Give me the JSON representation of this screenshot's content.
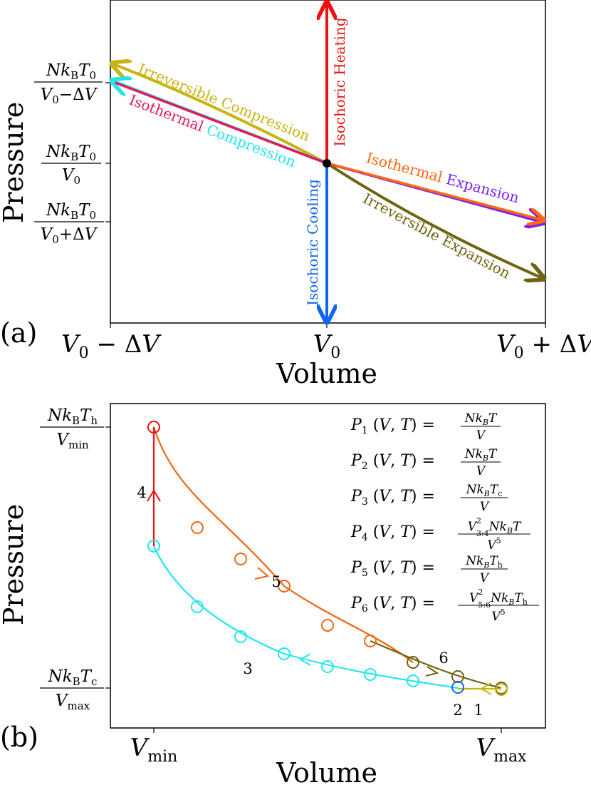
{
  "chart_data": [
    {
      "panel_label": "(a)",
      "type": "line",
      "xlabel": "Volume",
      "ylabel": "Pressure",
      "xticks": [
        {
          "value": -1,
          "label": "V0 − ΔV"
        },
        {
          "value": 0,
          "label": "V0"
        },
        {
          "value": 1,
          "label": "V0 + ΔV"
        }
      ],
      "yticks": [
        {
          "value": 1.333,
          "label": "NkBT0 / (V0−ΔV)"
        },
        {
          "value": 1.0,
          "label": "NkBT0 / V0"
        },
        {
          "value": 0.8,
          "label": "NkBT0 / (V0+ΔV)"
        }
      ],
      "xlim": [
        -1,
        1
      ],
      "ylim": [
        0.25,
        1.75
      ],
      "state_point": {
        "x": 0,
        "y": 1.0
      },
      "series": [
        {
          "name": "Isochoric Heating",
          "color": "#ee1111",
          "points": [
            [
              0,
              1.0
            ],
            [
              0,
              1.75
            ]
          ]
        },
        {
          "name": "Isochoric Cooling",
          "color": "#1166ee",
          "points": [
            [
              0,
              1.0
            ],
            [
              0,
              0.25
            ]
          ]
        },
        {
          "name": "Isothermal Compression",
          "colors": [
            "#e6195a",
            "#22e6ee"
          ],
          "points": [
            [
              0,
              1.0
            ],
            [
              -1,
              1.333
            ]
          ]
        },
        {
          "name": "Isothermal Expansion",
          "colors": [
            "#ff6611",
            "#7a22ee"
          ],
          "points": [
            [
              0,
              1.0
            ],
            [
              1,
              0.8
            ]
          ]
        },
        {
          "name": "Irreversible Compression",
          "color": "#c8b411",
          "points": [
            [
              0,
              1.0
            ],
            [
              -1,
              1.44
            ]
          ]
        },
        {
          "name": "Irreversible Expansion",
          "color": "#6e6411",
          "points": [
            [
              0,
              1.0
            ],
            [
              1,
              0.62
            ]
          ]
        }
      ]
    },
    {
      "panel_label": "(b)",
      "type": "line",
      "xlabel": "Volume",
      "ylabel": "Pressure",
      "xticks": [
        {
          "value": 1,
          "label": "Vmin"
        },
        {
          "value": 3,
          "label": "Vmax"
        }
      ],
      "yticks": [
        {
          "value": 3,
          "label": "NkBTh / Vmin"
        },
        {
          "value": 1,
          "label": "NkBTc / Vmax"
        }
      ],
      "xlim": [
        0.74,
        3.25
      ],
      "ylim": [
        0.85,
        3.05
      ],
      "equations": [
        "P1 (V, T) = NkBT / V",
        "P2 (V, T) = NkBT / V",
        "P3 (V, T) = NkBTc / V",
        "P4 (V, T) = V3:4^(2/3) NkBT / V^(5/3)",
        "P5 (V, T) = NkBTh / V",
        "P6 (V, T) = V5:6^(2/3) NkBTh / V^(5/3)"
      ],
      "series": [
        {
          "name": "1",
          "color": "#c8b411",
          "x": [
            3.0,
            2.88,
            2.82
          ],
          "y": [
            1.0,
            1.0,
            1.0
          ]
        },
        {
          "name": "2",
          "color": "#1166ee",
          "x": [
            2.74
          ],
          "y": [
            1.01
          ]
        },
        {
          "name": "3",
          "color": "#22e6ee",
          "x": [
            2.75,
            2.5,
            2.25,
            2.0,
            1.75,
            1.5,
            1.25,
            1.0
          ],
          "y": [
            1.09,
            1.2,
            1.33,
            1.5,
            1.71,
            2.0,
            2.4,
            2.3
          ]
        },
        {
          "name": "4",
          "color": "#ee1111",
          "x": [
            1.0,
            1.0
          ],
          "y": [
            2.3,
            3.0
          ]
        },
        {
          "name": "5",
          "color": "#ee6611",
          "x": [
            1.0,
            1.25,
            1.5,
            1.75,
            2.0,
            2.25,
            2.5
          ],
          "y": [
            3.0,
            2.4,
            2.0,
            1.71,
            1.5,
            1.33,
            1.2
          ]
        },
        {
          "name": "6",
          "color": "#6e6411",
          "x": [
            2.5,
            2.6,
            2.75,
            3.0
          ],
          "y": [
            1.2,
            1.15,
            1.09,
            1.0
          ]
        }
      ],
      "segment_labels": [
        {
          "text": "1"
        },
        {
          "text": "2"
        },
        {
          "text": "3"
        },
        {
          "text": "4"
        },
        {
          "text": "5"
        },
        {
          "text": "6"
        }
      ]
    }
  ]
}
